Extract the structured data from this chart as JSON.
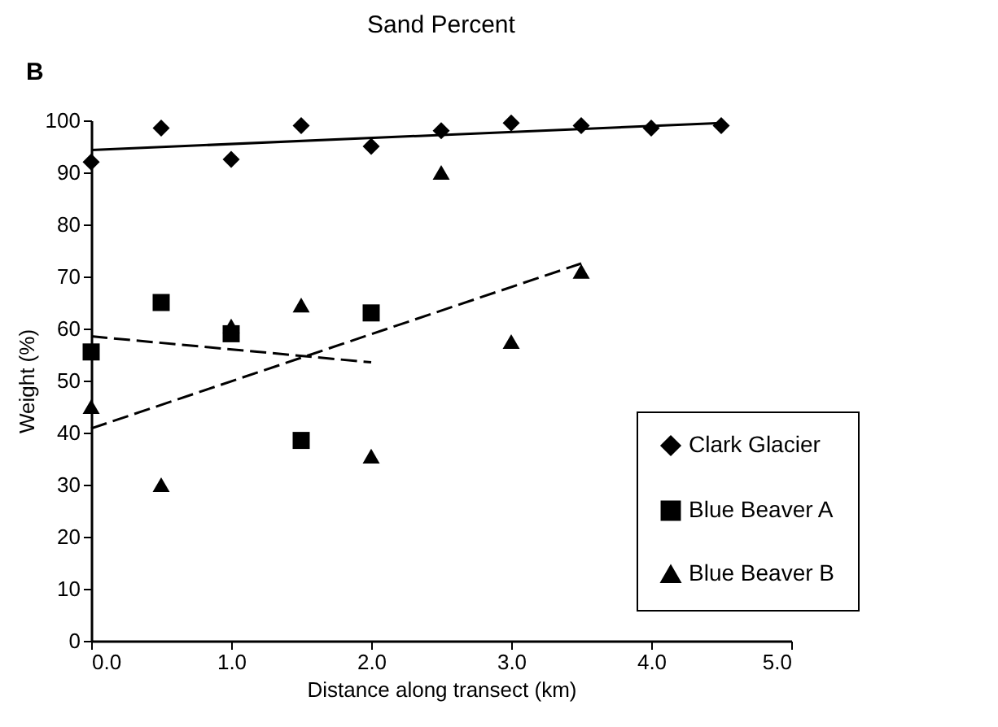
{
  "chart_data": {
    "type": "scatter",
    "title": "Sand Percent",
    "xlabel": "Distance along transect (km)",
    "ylabel": "Weight (%)",
    "annotations": [
      "B"
    ],
    "xlim": [
      0,
      5
    ],
    "ylim": [
      0,
      100
    ],
    "xticks": [
      {
        "value": 0,
        "label": "0.0"
      },
      {
        "value": 1,
        "label": "1.0"
      },
      {
        "value": 2,
        "label": "2.0"
      },
      {
        "value": 3,
        "label": "3.0"
      },
      {
        "value": 4,
        "label": "4.0"
      },
      {
        "value": 5,
        "label": "5.0"
      }
    ],
    "yticks": [
      0,
      10,
      20,
      30,
      40,
      50,
      60,
      70,
      80,
      90,
      100
    ],
    "grid": false,
    "legend": "right",
    "series": [
      {
        "name": "Clark Glacier",
        "color": "#000000",
        "marker": "diamond",
        "x": [
          0,
          0.5,
          1,
          1.5,
          2,
          2.5,
          3,
          3.5,
          4,
          4.5
        ],
        "values": [
          92,
          98.5,
          92.5,
          99,
          95,
          98,
          99.5,
          99,
          98.5,
          99
        ]
      },
      {
        "name": "Blue Beaver A",
        "color": "#000000",
        "marker": "square",
        "x": [
          0,
          0.5,
          1,
          1.5,
          2
        ],
        "values": [
          55.5,
          65,
          59,
          38.5,
          63
        ]
      },
      {
        "name": "Blue Beaver B",
        "color": "#000000",
        "marker": "triangle",
        "x": [
          0,
          0.5,
          1,
          1.5,
          2,
          2.5,
          3,
          3.5
        ],
        "values": [
          45,
          30,
          60.5,
          64.5,
          35.5,
          90,
          57.5,
          71
        ]
      },
      {
        "type": "line",
        "color": "#000000",
        "line_style": "solid",
        "x": [
          0,
          4.5
        ],
        "values": [
          94.3,
          99.5
        ]
      },
      {
        "type": "line",
        "color": "#000000",
        "line_style": "dashed",
        "x": [
          0,
          2
        ],
        "values": [
          58.5,
          53.5
        ]
      },
      {
        "type": "line",
        "color": "#000000",
        "line_style": "dashed",
        "x": [
          0,
          3.5
        ],
        "values": [
          40.8,
          72.5
        ]
      }
    ]
  }
}
